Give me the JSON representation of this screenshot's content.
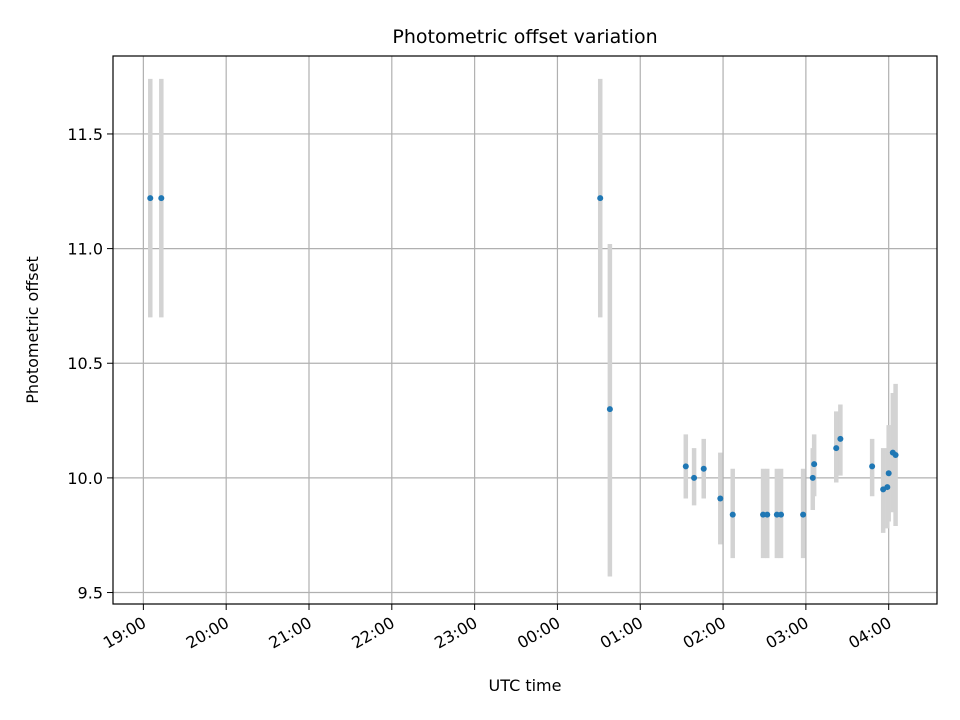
{
  "chart_data": {
    "type": "scatter",
    "title": "Photometric offset variation",
    "xlabel": "UTC time",
    "ylabel": "Photometric offset",
    "x_axis": {
      "kind": "time",
      "ticks": [
        "19:00",
        "20:00",
        "21:00",
        "22:00",
        "23:00",
        "00:00",
        "01:00",
        "02:00",
        "03:00",
        "04:00"
      ],
      "range": [
        "18:38",
        "04:35"
      ]
    },
    "y_axis": {
      "ticks": [
        "9.5",
        "10.0",
        "10.5",
        "11.0",
        "11.5"
      ],
      "range": [
        9.45,
        11.84
      ]
    },
    "grid": true,
    "colors": {
      "point": "#1f77b4",
      "errorbar": "#d3d3d3"
    },
    "points": [
      {
        "time": "19:05",
        "y": 11.22,
        "lo": 10.7,
        "hi": 11.74
      },
      {
        "time": "19:13",
        "y": 11.22,
        "lo": 10.7,
        "hi": 11.74
      },
      {
        "time": "00:31",
        "y": 11.22,
        "lo": 10.7,
        "hi": 11.74
      },
      {
        "time": "00:38",
        "y": 10.3,
        "lo": 9.57,
        "hi": 11.02
      },
      {
        "time": "01:33",
        "y": 10.05,
        "lo": 9.91,
        "hi": 10.19
      },
      {
        "time": "01:39",
        "y": 10.0,
        "lo": 9.88,
        "hi": 10.13
      },
      {
        "time": "01:46",
        "y": 10.04,
        "lo": 9.91,
        "hi": 10.17
      },
      {
        "time": "01:58",
        "y": 9.91,
        "lo": 9.71,
        "hi": 10.11
      },
      {
        "time": "02:07",
        "y": 9.84,
        "lo": 9.65,
        "hi": 10.04
      },
      {
        "time": "02:29",
        "y": 9.84,
        "lo": 9.65,
        "hi": 10.04
      },
      {
        "time": "02:32",
        "y": 9.84,
        "lo": 9.65,
        "hi": 10.04
      },
      {
        "time": "02:39",
        "y": 9.84,
        "lo": 9.65,
        "hi": 10.04
      },
      {
        "time": "02:42",
        "y": 9.84,
        "lo": 9.65,
        "hi": 10.04
      },
      {
        "time": "02:58",
        "y": 9.84,
        "lo": 9.65,
        "hi": 10.04
      },
      {
        "time": "03:05",
        "y": 10.0,
        "lo": 9.86,
        "hi": 10.13
      },
      {
        "time": "03:06",
        "y": 10.06,
        "lo": 9.92,
        "hi": 10.19
      },
      {
        "time": "03:22",
        "y": 10.13,
        "lo": 9.98,
        "hi": 10.29
      },
      {
        "time": "03:25",
        "y": 10.17,
        "lo": 10.01,
        "hi": 10.32
      },
      {
        "time": "03:48",
        "y": 10.05,
        "lo": 9.92,
        "hi": 10.17
      },
      {
        "time": "03:56",
        "y": 9.95,
        "lo": 9.76,
        "hi": 10.13
      },
      {
        "time": "03:59",
        "y": 9.96,
        "lo": 9.78,
        "hi": 10.13
      },
      {
        "time": "04:00",
        "y": 10.02,
        "lo": 9.81,
        "hi": 10.23
      },
      {
        "time": "04:03",
        "y": 10.11,
        "lo": 9.85,
        "hi": 10.37
      },
      {
        "time": "04:05",
        "y": 10.1,
        "lo": 9.79,
        "hi": 10.41
      }
    ]
  }
}
